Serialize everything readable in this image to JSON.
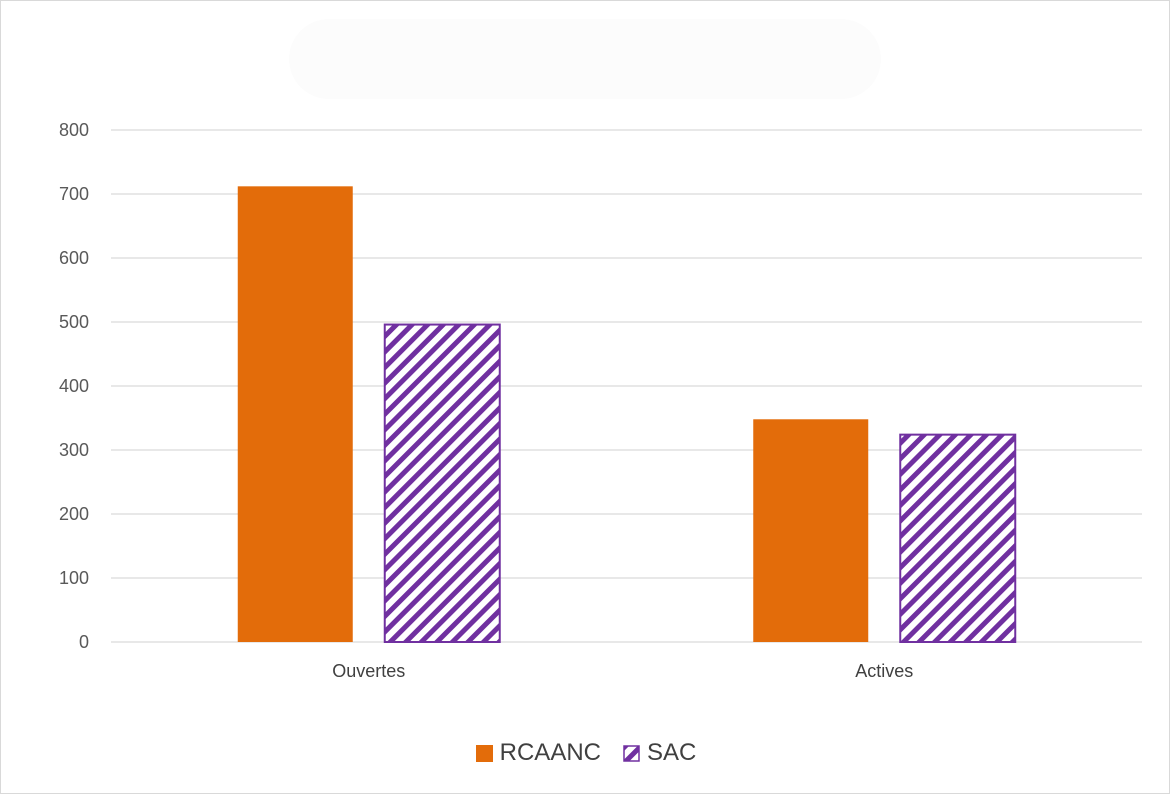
{
  "chart_data": {
    "type": "bar",
    "title": "",
    "xlabel": "",
    "ylabel": "",
    "categories": [
      "Ouvertes",
      "Actives"
    ],
    "series": [
      {
        "name": "RCAANC",
        "values": [
          712,
          348
        ],
        "color": "#e36c0a",
        "fill": "solid"
      },
      {
        "name": "SAC",
        "values": [
          496,
          324
        ],
        "color": "#7030a0",
        "fill": "diagonal-hatch"
      }
    ],
    "ylim": [
      0,
      800
    ],
    "yticks": [
      0,
      100,
      200,
      300,
      400,
      500,
      600,
      700,
      800
    ],
    "grid": true,
    "legend_position": "bottom"
  }
}
